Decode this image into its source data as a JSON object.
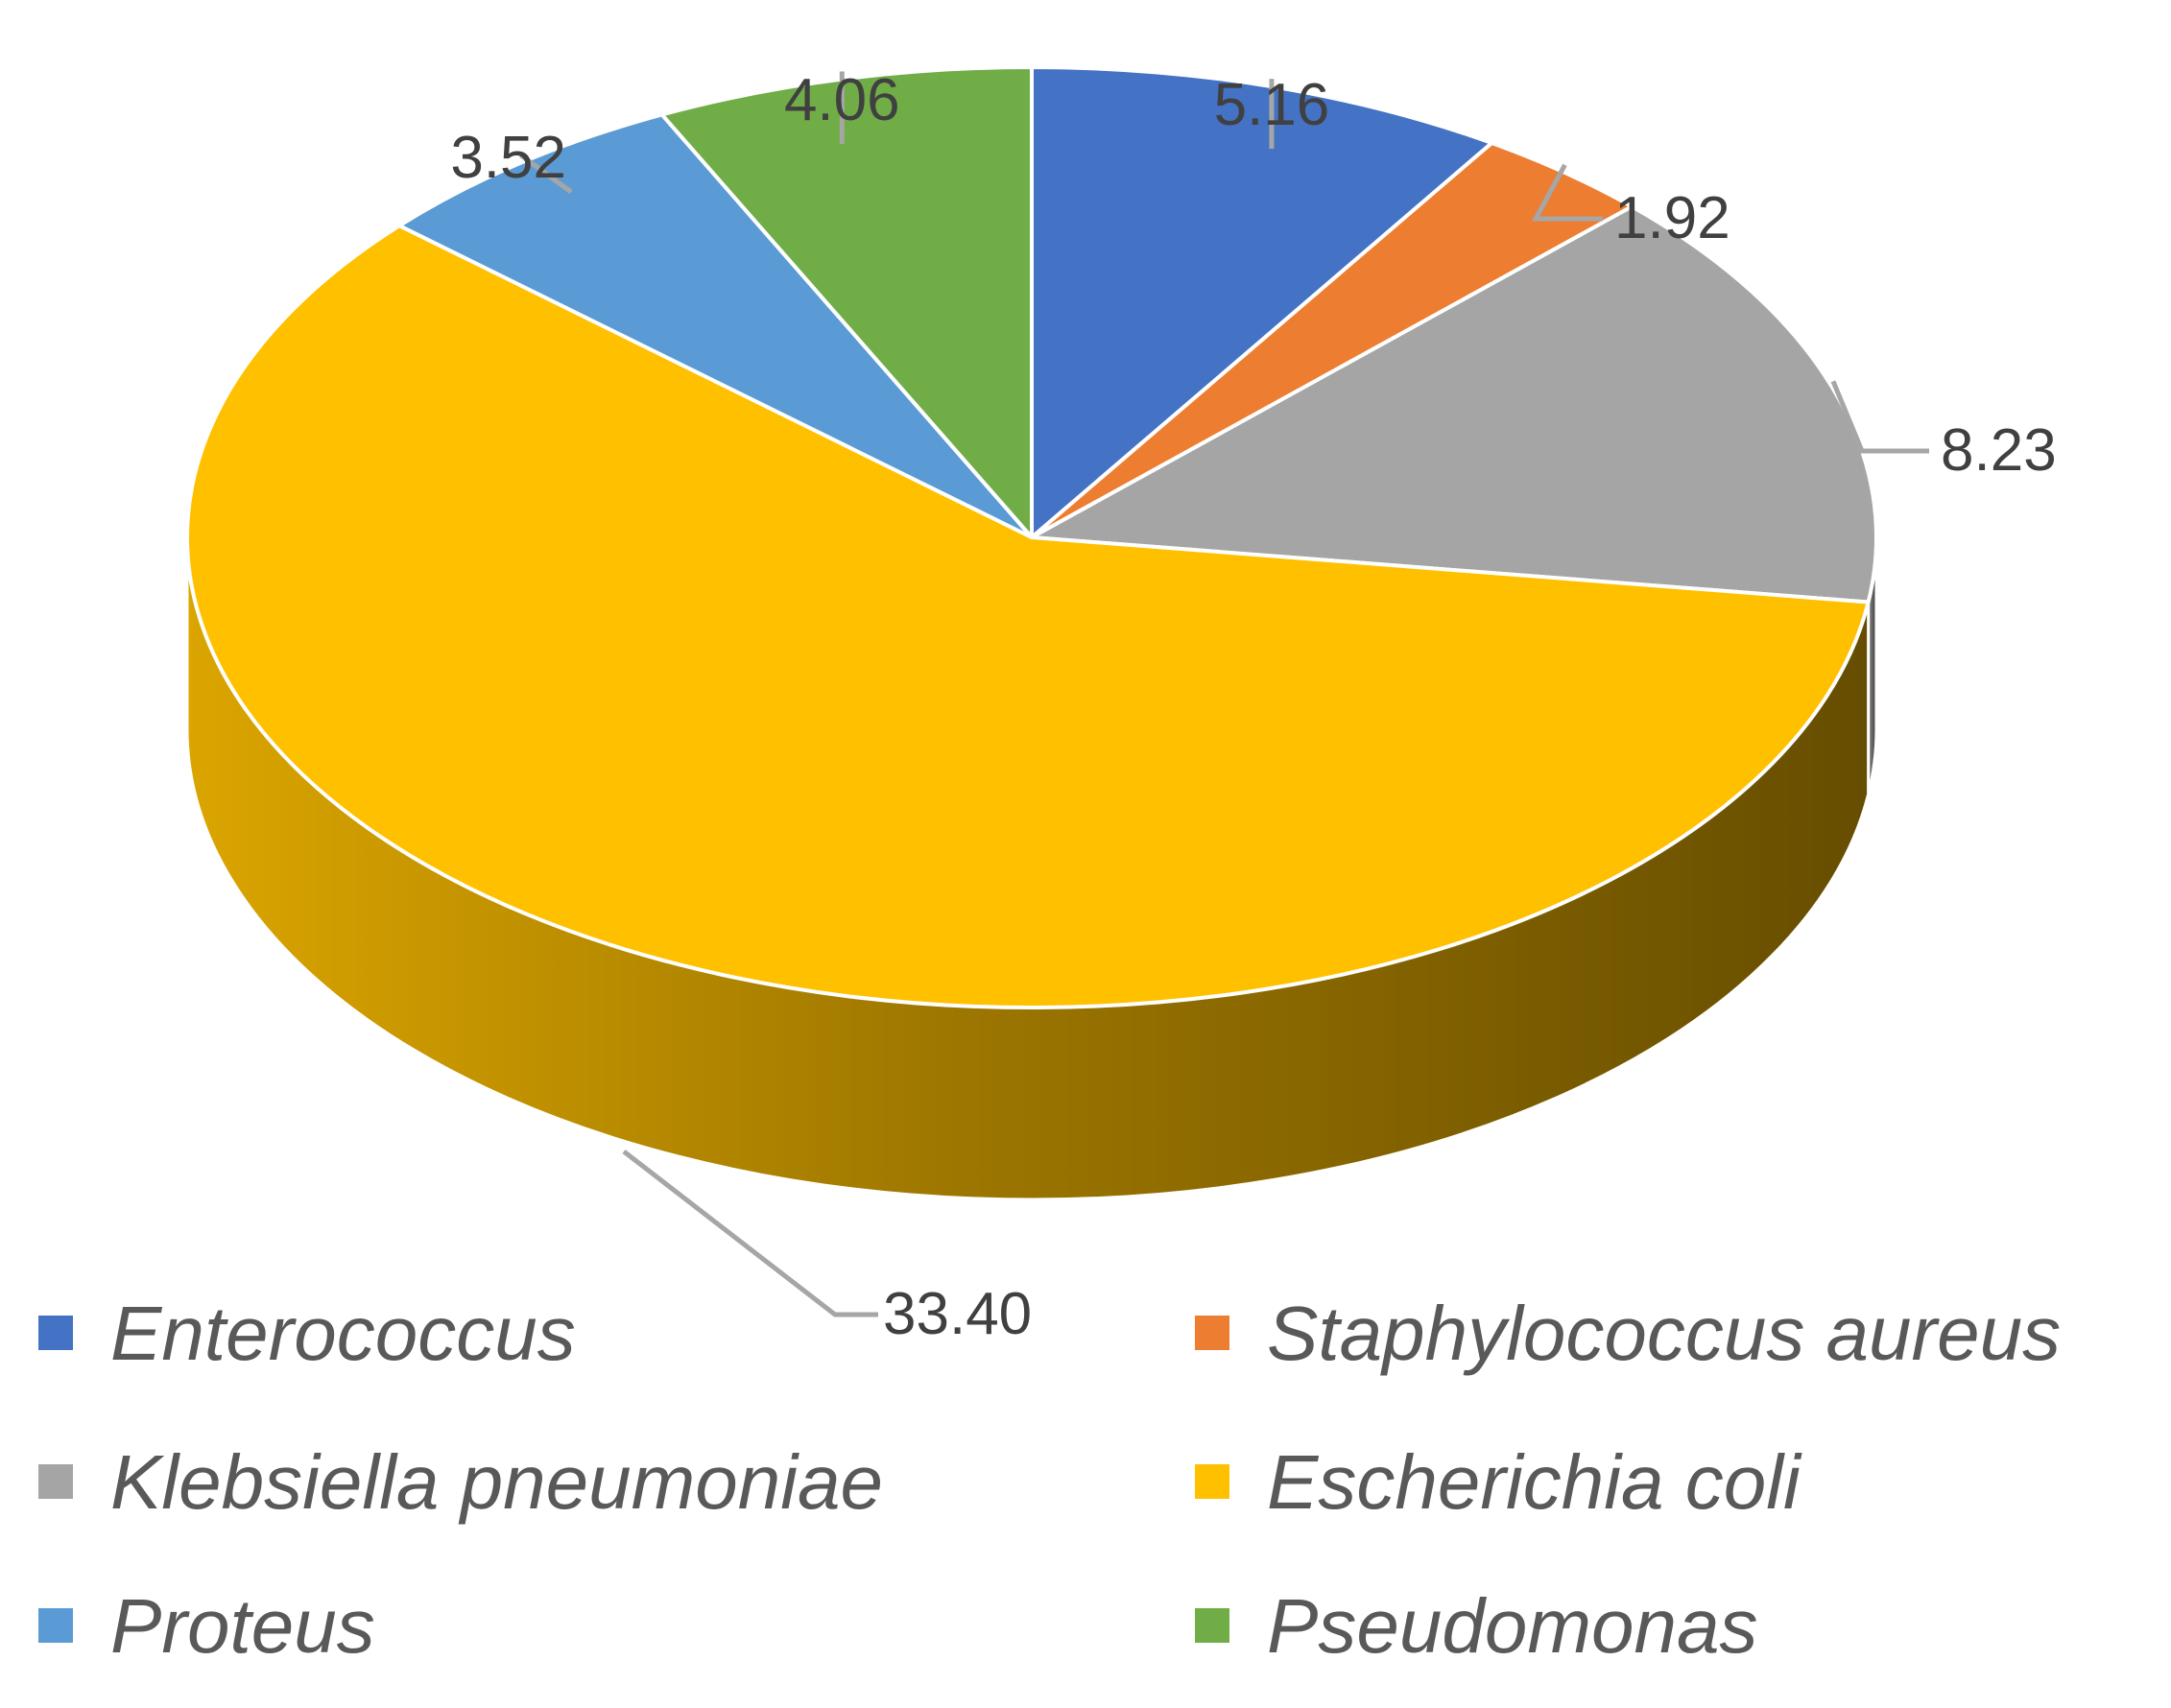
{
  "chart_data": {
    "type": "pie",
    "style": "3d",
    "title": "",
    "slices": [
      {
        "label": "Enterococcus",
        "value": 5.16,
        "display": "5.16",
        "color": "#4472C4"
      },
      {
        "label": "Staphylococcus aureus",
        "value": 1.92,
        "display": "1.92",
        "color": "#ED7D31"
      },
      {
        "label": "Klebsiella pneumoniae",
        "value": 8.23,
        "display": "8.23",
        "color": "#A5A5A5"
      },
      {
        "label": "Escherichia coli",
        "value": 33.4,
        "display": "33.40",
        "color": "#FFC000"
      },
      {
        "label": "Proteus",
        "value": 3.52,
        "display": "3.52",
        "color": "#5B9BD5"
      },
      {
        "label": "Pseudomonas",
        "value": 4.06,
        "display": "4.06",
        "color": "#70AD47"
      }
    ],
    "legend_position": "bottom",
    "leader_line_color": "#A6A6A6"
  }
}
